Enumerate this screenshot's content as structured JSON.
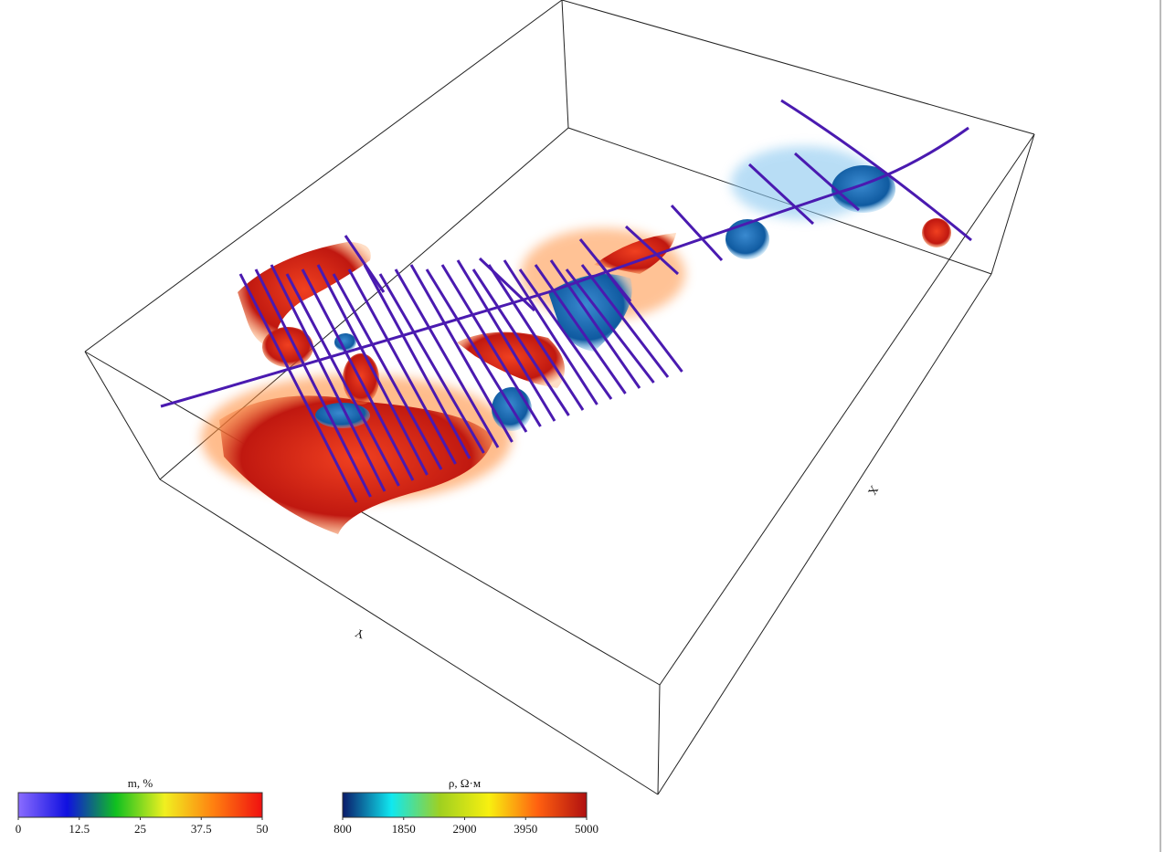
{
  "axis_labels": {
    "x": "X",
    "y": "Y"
  },
  "colorbars": [
    {
      "title": "m, %",
      "lim": [
        0,
        50
      ],
      "ticks": [
        0,
        12.5,
        25,
        37.5,
        50
      ],
      "colors": [
        "#8a6cff",
        "#1010e0",
        "#10c020",
        "#f0f020",
        "#ff8010",
        "#f01010"
      ]
    },
    {
      "title": "ρ, Ω·м",
      "lim": [
        800,
        5000
      ],
      "ticks": [
        800,
        1850,
        2900,
        3950,
        5000
      ],
      "colors": [
        "#0a1a6a",
        "#10e8f0",
        "#a0d020",
        "#f8f010",
        "#ff6010",
        "#b01010"
      ]
    }
  ]
}
